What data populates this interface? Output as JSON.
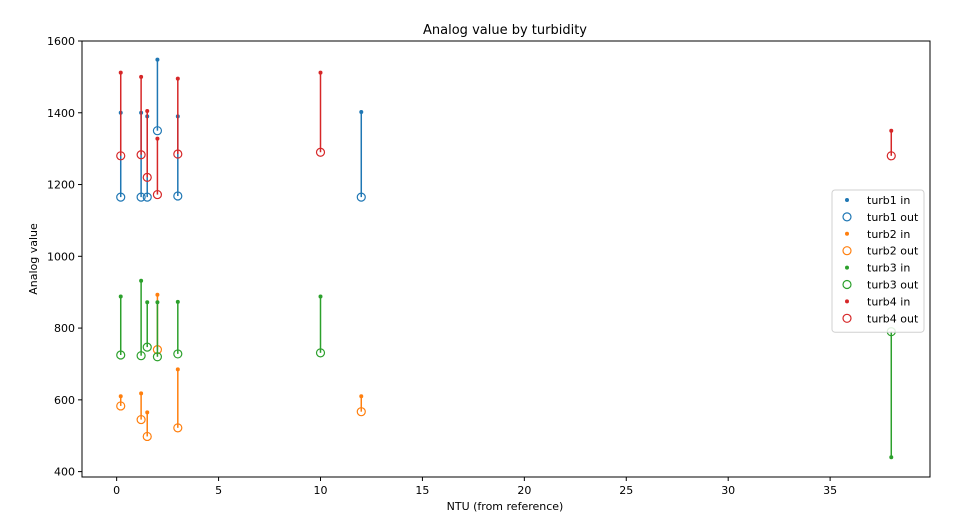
{
  "chart_data": {
    "type": "scatter",
    "title": "Analog value by turbidity",
    "xlabel": "NTU (from reference)",
    "ylabel": "Analog value",
    "xlim": [
      -1.7,
      39.9
    ],
    "ylim": [
      385,
      1600
    ],
    "xticks": [
      "0",
      "5",
      "10",
      "15",
      "20",
      "25",
      "30",
      "35"
    ],
    "yticks": [
      "400",
      "600",
      "800",
      "1000",
      "1200",
      "1400",
      "1600"
    ],
    "grid": false,
    "legend_position": "right",
    "series": [
      {
        "name": "turb1",
        "color": "#1f77b4",
        "in_label": "turb1 in",
        "out_label": "turb1 out",
        "points": [
          {
            "x": 0.2,
            "in": 1400,
            "out": 1165
          },
          {
            "x": 1.2,
            "in": 1400,
            "out": 1165
          },
          {
            "x": 1.5,
            "in": 1390,
            "out": 1165
          },
          {
            "x": 2.0,
            "in": 1548,
            "out": 1350
          },
          {
            "x": 3.0,
            "in": 1390,
            "out": 1168
          },
          {
            "x": 12.0,
            "in": 1402,
            "out": 1165
          }
        ]
      },
      {
        "name": "turb2",
        "color": "#ff7f0e",
        "in_label": "turb2 in",
        "out_label": "turb2 out",
        "points": [
          {
            "x": 0.2,
            "in": 610,
            "out": 583
          },
          {
            "x": 1.2,
            "in": 618,
            "out": 545
          },
          {
            "x": 1.5,
            "in": 565,
            "out": 498
          },
          {
            "x": 2.0,
            "in": 893,
            "out": 740
          },
          {
            "x": 3.0,
            "in": 685,
            "out": 522
          },
          {
            "x": 12.0,
            "in": 610,
            "out": 567
          }
        ]
      },
      {
        "name": "turb3",
        "color": "#2ca02c",
        "in_label": "turb3 in",
        "out_label": "turb3 out",
        "points": [
          {
            "x": 0.2,
            "in": 888,
            "out": 725
          },
          {
            "x": 1.2,
            "in": 932,
            "out": 723
          },
          {
            "x": 1.5,
            "in": 872,
            "out": 747
          },
          {
            "x": 2.0,
            "in": 872,
            "out": 720
          },
          {
            "x": 3.0,
            "in": 873,
            "out": 728
          },
          {
            "x": 10.0,
            "in": 888,
            "out": 731
          },
          {
            "x": 38.0,
            "in": 440,
            "out": 790
          }
        ]
      },
      {
        "name": "turb4",
        "color": "#d62728",
        "in_label": "turb4 in",
        "out_label": "turb4 out",
        "points": [
          {
            "x": 0.2,
            "in": 1512,
            "out": 1280
          },
          {
            "x": 1.2,
            "in": 1500,
            "out": 1283
          },
          {
            "x": 1.5,
            "in": 1405,
            "out": 1220
          },
          {
            "x": 2.0,
            "in": 1328,
            "out": 1172
          },
          {
            "x": 3.0,
            "in": 1495,
            "out": 1285
          },
          {
            "x": 10.0,
            "in": 1512,
            "out": 1290
          },
          {
            "x": 38.0,
            "in": 1350,
            "out": 1280
          }
        ]
      }
    ]
  }
}
